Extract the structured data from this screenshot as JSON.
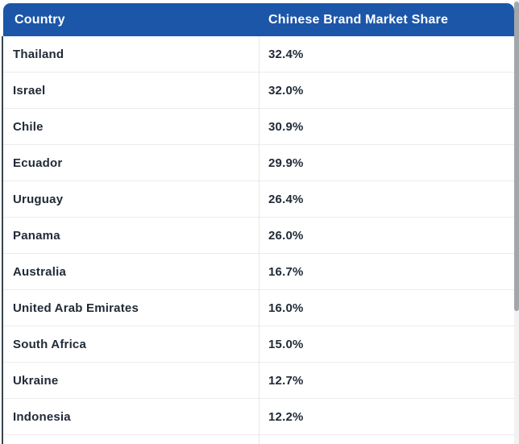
{
  "chart_data": {
    "type": "table",
    "columns": [
      "Country",
      "Chinese Brand Market Share"
    ],
    "rows": [
      [
        "Thailand",
        "32.4%"
      ],
      [
        "Israel",
        "32.0%"
      ],
      [
        "Chile",
        "30.9%"
      ],
      [
        "Ecuador",
        "29.9%"
      ],
      [
        "Uruguay",
        "26.4%"
      ],
      [
        "Panama",
        "26.0%"
      ],
      [
        "Australia",
        "16.7%"
      ],
      [
        "United Arab Emirates",
        "16.0%"
      ],
      [
        "South Africa",
        "15.0%"
      ],
      [
        "Ukraine",
        "12.7%"
      ],
      [
        "Indonesia",
        "12.2%"
      ]
    ],
    "values_numeric": [
      32.4,
      32.0,
      30.9,
      29.9,
      26.4,
      26.0,
      16.7,
      16.0,
      15.0,
      12.7,
      12.2
    ]
  },
  "colors": {
    "header_background": "#1C56A9",
    "header_text": "#FFFFFF",
    "row_text": "#1F2A37",
    "row_divider": "#EBEBEB",
    "column_divider": "#E7E7E7",
    "table_left_border": "#36454F",
    "scrollbar_thumb": "#A3A7AA",
    "scrollbar_track": "#F2F2F2"
  }
}
